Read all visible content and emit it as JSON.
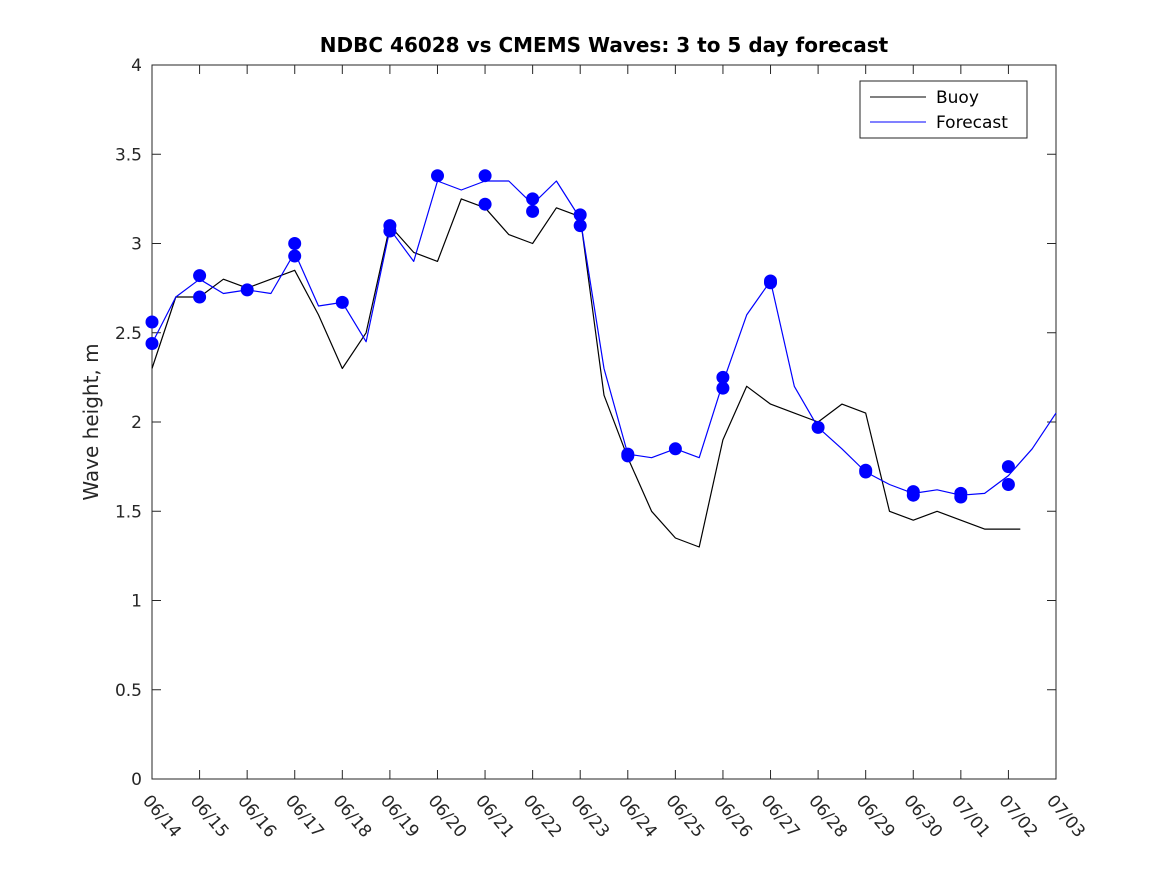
{
  "chart_data": {
    "type": "line",
    "title": "NDBC 46028 vs CMEMS Waves: 3 to 5 day forecast",
    "xlabel": "",
    "ylabel": "Wave height, m",
    "x_axis": {
      "kind": "date",
      "first": "06/14",
      "last": "07/03",
      "tick_labels": [
        "06/14",
        "06/15",
        "06/16",
        "06/17",
        "06/18",
        "06/19",
        "06/20",
        "06/21",
        "06/22",
        "06/23",
        "06/24",
        "06/25",
        "06/26",
        "06/27",
        "06/28",
        "06/29",
        "06/30",
        "07/01",
        "07/02",
        "07/03"
      ]
    },
    "ylim": [
      0,
      4
    ],
    "y_ticks": [
      0,
      0.5,
      1,
      1.5,
      2,
      2.5,
      3,
      3.5,
      4
    ],
    "grid": false,
    "legend": {
      "position": "top-right",
      "entries": [
        "Buoy",
        "Forecast"
      ]
    },
    "colors": {
      "buoy": "#000000",
      "forecast": "#0000ff"
    },
    "series": [
      {
        "name": "Buoy",
        "color": "#000000",
        "points": [
          [
            "06/14",
            2.3
          ],
          [
            "06/14 12:00",
            2.7
          ],
          [
            "06/15",
            2.7
          ],
          [
            "06/15 12:00",
            2.8
          ],
          [
            "06/16",
            2.75
          ],
          [
            "06/16 12:00",
            2.8
          ],
          [
            "06/17",
            2.85
          ],
          [
            "06/17 12:00",
            2.6
          ],
          [
            "06/18",
            2.3
          ],
          [
            "06/18 12:00",
            2.5
          ],
          [
            "06/19",
            3.1
          ],
          [
            "06/19 12:00",
            2.95
          ],
          [
            "06/20",
            2.9
          ],
          [
            "06/20 12:00",
            3.25
          ],
          [
            "06/21",
            3.2
          ],
          [
            "06/21 12:00",
            3.05
          ],
          [
            "06/22",
            3.0
          ],
          [
            "06/22 12:00",
            3.2
          ],
          [
            "06/23",
            3.15
          ],
          [
            "06/23 12:00",
            2.15
          ],
          [
            "06/24",
            1.8
          ],
          [
            "06/24 12:00",
            1.5
          ],
          [
            "06/25",
            1.35
          ],
          [
            "06/25 12:00",
            1.3
          ],
          [
            "06/26",
            1.9
          ],
          [
            "06/26 12:00",
            2.2
          ],
          [
            "06/27",
            2.1
          ],
          [
            "06/27 12:00",
            2.05
          ],
          [
            "06/28",
            2.0
          ],
          [
            "06/28 12:00",
            2.1
          ],
          [
            "06/29",
            2.05
          ],
          [
            "06/29 12:00",
            1.5
          ],
          [
            "06/30",
            1.45
          ],
          [
            "06/30 12:00",
            1.5
          ],
          [
            "07/01",
            1.45
          ],
          [
            "07/01 12:00",
            1.4
          ],
          [
            "07/02",
            1.4
          ],
          [
            "07/02 06:00",
            1.4
          ]
        ]
      },
      {
        "name": "Forecast",
        "color": "#0000ff",
        "points": [
          [
            "06/14",
            2.44
          ],
          [
            "06/14 12:00",
            2.7
          ],
          [
            "06/15",
            2.8
          ],
          [
            "06/15 12:00",
            2.72
          ],
          [
            "06/16",
            2.74
          ],
          [
            "06/16 12:00",
            2.72
          ],
          [
            "06/17",
            2.95
          ],
          [
            "06/17 12:00",
            2.65
          ],
          [
            "06/18",
            2.67
          ],
          [
            "06/18 12:00",
            2.45
          ],
          [
            "06/19",
            3.08
          ],
          [
            "06/19 12:00",
            2.9
          ],
          [
            "06/20",
            3.35
          ],
          [
            "06/20 12:00",
            3.3
          ],
          [
            "06/21",
            3.35
          ],
          [
            "06/21 12:00",
            3.35
          ],
          [
            "06/22",
            3.22
          ],
          [
            "06/22 12:00",
            3.35
          ],
          [
            "06/23",
            3.14
          ],
          [
            "06/23 12:00",
            2.3
          ],
          [
            "06/24",
            1.82
          ],
          [
            "06/24 12:00",
            1.8
          ],
          [
            "06/25",
            1.85
          ],
          [
            "06/25 12:00",
            1.8
          ],
          [
            "06/26",
            2.22
          ],
          [
            "06/26 12:00",
            2.6
          ],
          [
            "06/27",
            2.79
          ],
          [
            "06/27 12:00",
            2.2
          ],
          [
            "06/28",
            1.97
          ],
          [
            "06/28 12:00",
            1.85
          ],
          [
            "06/29",
            1.72
          ],
          [
            "06/29 12:00",
            1.65
          ],
          [
            "06/30",
            1.6
          ],
          [
            "06/30 12:00",
            1.62
          ],
          [
            "07/01",
            1.59
          ],
          [
            "07/01 12:00",
            1.6
          ],
          [
            "07/02",
            1.7
          ],
          [
            "07/02 12:00",
            1.85
          ],
          [
            "07/03",
            2.05
          ]
        ],
        "markers": [
          [
            "06/14",
            2.44
          ],
          [
            "06/14",
            2.56
          ],
          [
            "06/15",
            2.7
          ],
          [
            "06/15",
            2.82
          ],
          [
            "06/16",
            2.74
          ],
          [
            "06/17",
            2.93
          ],
          [
            "06/17",
            3.0
          ],
          [
            "06/18",
            2.67
          ],
          [
            "06/19",
            3.07
          ],
          [
            "06/19",
            3.1
          ],
          [
            "06/20",
            3.38
          ],
          [
            "06/21",
            3.22
          ],
          [
            "06/21",
            3.38
          ],
          [
            "06/22",
            3.18
          ],
          [
            "06/22",
            3.25
          ],
          [
            "06/23",
            3.1
          ],
          [
            "06/23",
            3.16
          ],
          [
            "06/24",
            1.81
          ],
          [
            "06/24",
            1.82
          ],
          [
            "06/25",
            1.85
          ],
          [
            "06/26",
            2.19
          ],
          [
            "06/26",
            2.25
          ],
          [
            "06/27",
            2.78
          ],
          [
            "06/27",
            2.79
          ],
          [
            "06/28",
            1.97
          ],
          [
            "06/29",
            1.72
          ],
          [
            "06/29",
            1.73
          ],
          [
            "06/30",
            1.59
          ],
          [
            "06/30",
            1.61
          ],
          [
            "07/01",
            1.58
          ],
          [
            "07/01",
            1.6
          ],
          [
            "07/02",
            1.65
          ],
          [
            "07/02",
            1.75
          ]
        ]
      }
    ]
  }
}
